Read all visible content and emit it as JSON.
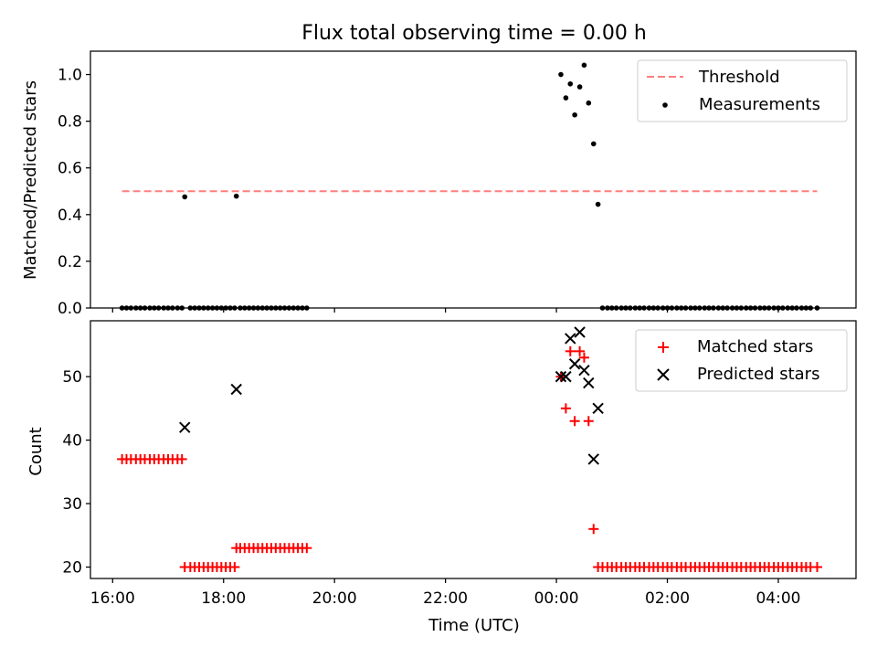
{
  "chart_data": [
    {
      "type": "scatter",
      "title": "Flux total observing time = 0.00 h",
      "xlabel": "",
      "ylabel": "Matched/Predicted stars",
      "ylim": [
        0,
        1.1
      ],
      "yticks": [
        0.0,
        0.2,
        0.4,
        0.6,
        0.8,
        1.0
      ],
      "ytick_labels": [
        "0.0",
        "0.2",
        "0.4",
        "0.6",
        "0.8",
        "1.0"
      ],
      "legend_position": "top-right",
      "threshold": {
        "name": "Threshold",
        "value": 0.5,
        "x_range": [
          16.17,
          28.7
        ],
        "color": "#ff7f7f"
      },
      "measurements": {
        "name": "Measurements",
        "color": "#000000",
        "points": [
          [
            16.17,
            0
          ],
          [
            16.25,
            0
          ],
          [
            16.33,
            0
          ],
          [
            16.42,
            0
          ],
          [
            16.5,
            0
          ],
          [
            16.58,
            0
          ],
          [
            16.67,
            0
          ],
          [
            16.75,
            0
          ],
          [
            16.83,
            0
          ],
          [
            16.92,
            0
          ],
          [
            17.0,
            0
          ],
          [
            17.08,
            0
          ],
          [
            17.17,
            0
          ],
          [
            17.25,
            0
          ],
          [
            17.3,
            0.476
          ],
          [
            17.4,
            0
          ],
          [
            17.48,
            0
          ],
          [
            17.56,
            0
          ],
          [
            17.64,
            0
          ],
          [
            17.72,
            0
          ],
          [
            17.8,
            0
          ],
          [
            17.88,
            0
          ],
          [
            17.96,
            0
          ],
          [
            18.04,
            0
          ],
          [
            18.12,
            0
          ],
          [
            18.2,
            0
          ],
          [
            18.23,
            0.479
          ],
          [
            18.3,
            0
          ],
          [
            18.38,
            0
          ],
          [
            18.46,
            0
          ],
          [
            18.54,
            0
          ],
          [
            18.62,
            0
          ],
          [
            18.7,
            0
          ],
          [
            18.78,
            0
          ],
          [
            18.86,
            0
          ],
          [
            18.94,
            0
          ],
          [
            19.02,
            0
          ],
          [
            19.1,
            0
          ],
          [
            19.18,
            0
          ],
          [
            19.26,
            0
          ],
          [
            19.34,
            0
          ],
          [
            19.42,
            0
          ],
          [
            19.5,
            0
          ],
          [
            24.08,
            1.0
          ],
          [
            24.17,
            0.9
          ],
          [
            24.25,
            0.96
          ],
          [
            24.33,
            0.827
          ],
          [
            24.42,
            0.947
          ],
          [
            24.5,
            1.04
          ],
          [
            24.58,
            0.878
          ],
          [
            24.67,
            0.703
          ],
          [
            24.75,
            0.444
          ],
          [
            24.83,
            0
          ],
          [
            24.92,
            0
          ],
          [
            25.0,
            0
          ],
          [
            25.08,
            0
          ],
          [
            25.17,
            0
          ],
          [
            25.25,
            0
          ],
          [
            25.33,
            0
          ],
          [
            25.42,
            0
          ],
          [
            25.5,
            0
          ],
          [
            25.58,
            0
          ],
          [
            25.67,
            0
          ],
          [
            25.75,
            0
          ],
          [
            25.83,
            0
          ],
          [
            25.92,
            0
          ],
          [
            26.0,
            0
          ],
          [
            26.08,
            0
          ],
          [
            26.17,
            0
          ],
          [
            26.25,
            0
          ],
          [
            26.33,
            0
          ],
          [
            26.42,
            0
          ],
          [
            26.5,
            0
          ],
          [
            26.58,
            0
          ],
          [
            26.67,
            0
          ],
          [
            26.75,
            0
          ],
          [
            26.83,
            0
          ],
          [
            26.92,
            0
          ],
          [
            27.0,
            0
          ],
          [
            27.08,
            0
          ],
          [
            27.17,
            0
          ],
          [
            27.25,
            0
          ],
          [
            27.33,
            0
          ],
          [
            27.42,
            0
          ],
          [
            27.5,
            0
          ],
          [
            27.58,
            0
          ],
          [
            27.67,
            0
          ],
          [
            27.75,
            0
          ],
          [
            27.83,
            0
          ],
          [
            27.92,
            0
          ],
          [
            28.0,
            0
          ],
          [
            28.08,
            0
          ],
          [
            28.17,
            0
          ],
          [
            28.25,
            0
          ],
          [
            28.33,
            0
          ],
          [
            28.42,
            0
          ],
          [
            28.5,
            0
          ],
          [
            28.58,
            0
          ],
          [
            28.7,
            0
          ]
        ]
      }
    },
    {
      "type": "scatter",
      "title": "",
      "xlabel": "Time (UTC)",
      "ylabel": "Count",
      "xlim": [
        15.6,
        29.4
      ],
      "xticks": [
        16,
        18,
        20,
        22,
        24,
        26,
        28
      ],
      "xtick_labels": [
        "16:00",
        "18:00",
        "20:00",
        "22:00",
        "00:00",
        "02:00",
        "04:00"
      ],
      "ylim": [
        18.2,
        58.8
      ],
      "yticks": [
        20,
        30,
        40,
        50
      ],
      "ytick_labels": [
        "20",
        "30",
        "40",
        "50"
      ],
      "legend_position": "top-right",
      "series": [
        {
          "name": "Matched stars",
          "marker": "+",
          "color": "#ff0000",
          "points": [
            [
              16.17,
              37
            ],
            [
              16.25,
              37
            ],
            [
              16.33,
              37
            ],
            [
              16.42,
              37
            ],
            [
              16.5,
              37
            ],
            [
              16.58,
              37
            ],
            [
              16.67,
              37
            ],
            [
              16.75,
              37
            ],
            [
              16.83,
              37
            ],
            [
              16.92,
              37
            ],
            [
              17.0,
              37
            ],
            [
              17.08,
              37
            ],
            [
              17.17,
              37
            ],
            [
              17.25,
              37
            ],
            [
              17.3,
              20
            ],
            [
              17.4,
              20
            ],
            [
              17.48,
              20
            ],
            [
              17.56,
              20
            ],
            [
              17.64,
              20
            ],
            [
              17.72,
              20
            ],
            [
              17.8,
              20
            ],
            [
              17.88,
              20
            ],
            [
              17.96,
              20
            ],
            [
              18.04,
              20
            ],
            [
              18.12,
              20
            ],
            [
              18.2,
              20
            ],
            [
              18.23,
              23
            ],
            [
              18.3,
              23
            ],
            [
              18.38,
              23
            ],
            [
              18.46,
              23
            ],
            [
              18.54,
              23
            ],
            [
              18.62,
              23
            ],
            [
              18.7,
              23
            ],
            [
              18.78,
              23
            ],
            [
              18.86,
              23
            ],
            [
              18.94,
              23
            ],
            [
              19.02,
              23
            ],
            [
              19.1,
              23
            ],
            [
              19.18,
              23
            ],
            [
              19.26,
              23
            ],
            [
              19.34,
              23
            ],
            [
              19.42,
              23
            ],
            [
              19.5,
              23
            ],
            [
              24.08,
              50
            ],
            [
              24.17,
              45
            ],
            [
              24.25,
              54
            ],
            [
              24.33,
              43
            ],
            [
              24.42,
              54
            ],
            [
              24.5,
              53
            ],
            [
              24.58,
              43
            ],
            [
              24.67,
              26
            ],
            [
              24.75,
              20
            ],
            [
              24.83,
              20
            ],
            [
              24.92,
              20
            ],
            [
              25.0,
              20
            ],
            [
              25.08,
              20
            ],
            [
              25.17,
              20
            ],
            [
              25.25,
              20
            ],
            [
              25.33,
              20
            ],
            [
              25.42,
              20
            ],
            [
              25.5,
              20
            ],
            [
              25.58,
              20
            ],
            [
              25.67,
              20
            ],
            [
              25.75,
              20
            ],
            [
              25.83,
              20
            ],
            [
              25.92,
              20
            ],
            [
              26.0,
              20
            ],
            [
              26.08,
              20
            ],
            [
              26.17,
              20
            ],
            [
              26.25,
              20
            ],
            [
              26.33,
              20
            ],
            [
              26.42,
              20
            ],
            [
              26.5,
              20
            ],
            [
              26.58,
              20
            ],
            [
              26.67,
              20
            ],
            [
              26.75,
              20
            ],
            [
              26.83,
              20
            ],
            [
              26.92,
              20
            ],
            [
              27.0,
              20
            ],
            [
              27.08,
              20
            ],
            [
              27.17,
              20
            ],
            [
              27.25,
              20
            ],
            [
              27.33,
              20
            ],
            [
              27.42,
              20
            ],
            [
              27.5,
              20
            ],
            [
              27.58,
              20
            ],
            [
              27.67,
              20
            ],
            [
              27.75,
              20
            ],
            [
              27.83,
              20
            ],
            [
              27.92,
              20
            ],
            [
              28.0,
              20
            ],
            [
              28.08,
              20
            ],
            [
              28.17,
              20
            ],
            [
              28.25,
              20
            ],
            [
              28.33,
              20
            ],
            [
              28.42,
              20
            ],
            [
              28.5,
              20
            ],
            [
              28.58,
              20
            ],
            [
              28.7,
              20
            ]
          ]
        },
        {
          "name": "Predicted stars",
          "marker": "x",
          "color": "#000000",
          "points": [
            [
              17.3,
              42
            ],
            [
              18.23,
              48
            ],
            [
              24.08,
              50
            ],
            [
              24.17,
              50
            ],
            [
              24.25,
              56
            ],
            [
              24.33,
              52
            ],
            [
              24.42,
              57
            ],
            [
              24.5,
              51
            ],
            [
              24.58,
              49
            ],
            [
              24.67,
              37
            ],
            [
              24.75,
              45
            ]
          ]
        }
      ]
    }
  ]
}
